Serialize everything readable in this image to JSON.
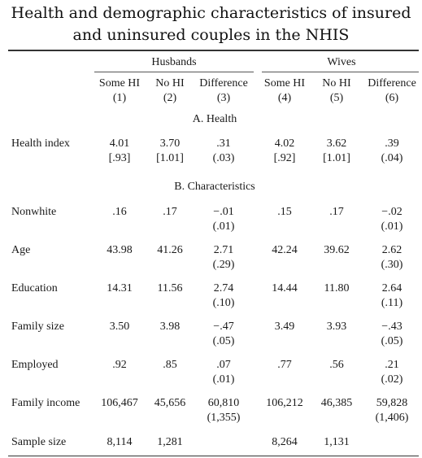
{
  "title": {
    "line1": "Health and demographic characteristics of insured",
    "line2": "and uninsured couples in the NHIS"
  },
  "groups": [
    "Husbands",
    "Wives"
  ],
  "columns": [
    {
      "label": "Some HI",
      "num": "(1)"
    },
    {
      "label": "No HI",
      "num": "(2)"
    },
    {
      "label": "Difference",
      "num": "(3)"
    },
    {
      "label": "Some HI",
      "num": "(4)"
    },
    {
      "label": "No HI",
      "num": "(5)"
    },
    {
      "label": "Difference",
      "num": "(6)"
    }
  ],
  "sections": {
    "a": "A. Health",
    "b": "B. Characteristics"
  },
  "rows": [
    {
      "label": "Health index",
      "top": [
        "4.01",
        "3.70",
        ".31",
        "4.02",
        "3.62",
        ".39"
      ],
      "bottom": [
        "[.93]",
        "[1.01]",
        "(.03)",
        "[.92]",
        "[1.01]",
        "(.04)"
      ]
    },
    {
      "label": "Nonwhite",
      "top": [
        ".16",
        ".17",
        "−.01",
        ".15",
        ".17",
        "−.02"
      ],
      "bottom": [
        "",
        "",
        "(.01)",
        "",
        "",
        "(.01)"
      ]
    },
    {
      "label": "Age",
      "top": [
        "43.98",
        "41.26",
        "2.71",
        "42.24",
        "39.62",
        "2.62"
      ],
      "bottom": [
        "",
        "",
        "(.29)",
        "",
        "",
        "(.30)"
      ]
    },
    {
      "label": "Education",
      "top": [
        "14.31",
        "11.56",
        "2.74",
        "14.44",
        "11.80",
        "2.64"
      ],
      "bottom": [
        "",
        "",
        "(.10)",
        "",
        "",
        "(.11)"
      ]
    },
    {
      "label": "Family size",
      "top": [
        "3.50",
        "3.98",
        "−.47",
        "3.49",
        "3.93",
        "−.43"
      ],
      "bottom": [
        "",
        "",
        "(.05)",
        "",
        "",
        "(.05)"
      ]
    },
    {
      "label": "Employed",
      "top": [
        ".92",
        ".85",
        ".07",
        ".77",
        ".56",
        ".21"
      ],
      "bottom": [
        "",
        "",
        "(.01)",
        "",
        "",
        "(.02)"
      ]
    },
    {
      "label": "Family income",
      "top": [
        "106,467",
        "45,656",
        "60,810",
        "106,212",
        "46,385",
        "59,828"
      ],
      "bottom": [
        "",
        "",
        "(1,355)",
        "",
        "",
        "(1,406)"
      ]
    },
    {
      "label": "Sample size",
      "top": [
        "8,114",
        "1,281",
        "",
        "8,264",
        "1,131",
        ""
      ],
      "bottom": [
        "",
        "",
        "",
        "",
        "",
        ""
      ]
    }
  ]
}
